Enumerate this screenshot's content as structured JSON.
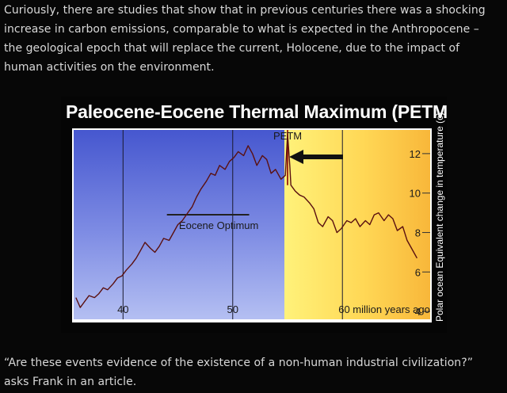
{
  "article": {
    "paragraph_top": "Curiously, there are studies that show that in previous centuries there was a shocking increase in carbon emissions, comparable to what is expected in the Anthropocene – the geological epoch that will replace the current, Holocene, due to the impact of human activities on the environment.",
    "paragraph_bottom": "“Are these events evidence of the existence of a non-human industrial civilization?” asks Frank in an article."
  },
  "chart_data": {
    "type": "line",
    "title": "Paleocene-Eocene Thermal Maximum (PETM)",
    "ylabel": "Polar ocean Equivalent change in temperature (c)",
    "xlabel": "million years ago",
    "x_ticks": [
      40,
      50,
      60
    ],
    "x_tick_labels": [
      "40",
      "50",
      "60 million years ago"
    ],
    "y_ticks": [
      4,
      6,
      8,
      10,
      12
    ],
    "xlim": [
      35.5,
      68
    ],
    "ylim": [
      3.6,
      13.2
    ],
    "annotations": {
      "optimum": "Eocene Optimum",
      "petm": "PETM"
    },
    "series": [
      {
        "x": [
          66.8,
          66.3,
          65.9,
          65.5,
          65.0,
          64.6,
          64.2,
          63.8,
          63.3,
          62.9,
          62.5,
          62.1,
          61.6,
          61.2,
          60.8,
          60.4,
          59.9,
          59.5,
          59.1,
          58.7,
          58.2,
          57.8,
          57.4,
          57.0,
          56.5,
          56.1,
          55.7,
          55.3,
          55.2,
          55.0,
          54.8,
          54.4,
          53.9,
          53.5,
          53.1,
          52.7,
          52.2,
          51.8,
          51.4,
          51.0,
          50.5,
          50.1,
          49.7,
          49.3,
          48.8,
          48.4,
          48.0,
          47.6,
          47.1,
          46.7,
          46.3,
          45.9,
          45.4,
          45.0,
          44.6,
          44.2,
          43.7,
          43.3,
          42.9,
          42.5,
          42.0,
          41.6,
          41.2,
          40.8,
          40.3,
          39.9,
          39.5,
          39.1,
          38.6,
          38.2,
          37.8,
          37.4,
          36.9,
          36.5,
          36.1,
          35.7
        ],
        "y": [
          6.7,
          7.2,
          7.6,
          8.3,
          8.1,
          8.7,
          8.9,
          8.6,
          9.0,
          8.9,
          8.4,
          8.6,
          8.3,
          8.7,
          8.5,
          8.6,
          8.2,
          8.0,
          8.6,
          8.8,
          8.3,
          8.5,
          9.2,
          9.5,
          9.8,
          9.9,
          10.1,
          10.4,
          11.4,
          13.0,
          10.9,
          10.7,
          11.2,
          11.0,
          11.7,
          11.9,
          11.4,
          12.0,
          12.4,
          11.9,
          12.1,
          11.8,
          11.6,
          11.2,
          11.4,
          10.9,
          11.0,
          10.6,
          10.2,
          9.8,
          9.3,
          9.0,
          8.6,
          8.4,
          8.0,
          7.6,
          7.7,
          7.3,
          7.0,
          7.2,
          7.5,
          7.1,
          6.7,
          6.4,
          6.1,
          5.8,
          5.7,
          5.4,
          5.1,
          5.2,
          4.9,
          4.7,
          4.8,
          4.5,
          4.2,
          4.7
        ]
      }
    ]
  }
}
